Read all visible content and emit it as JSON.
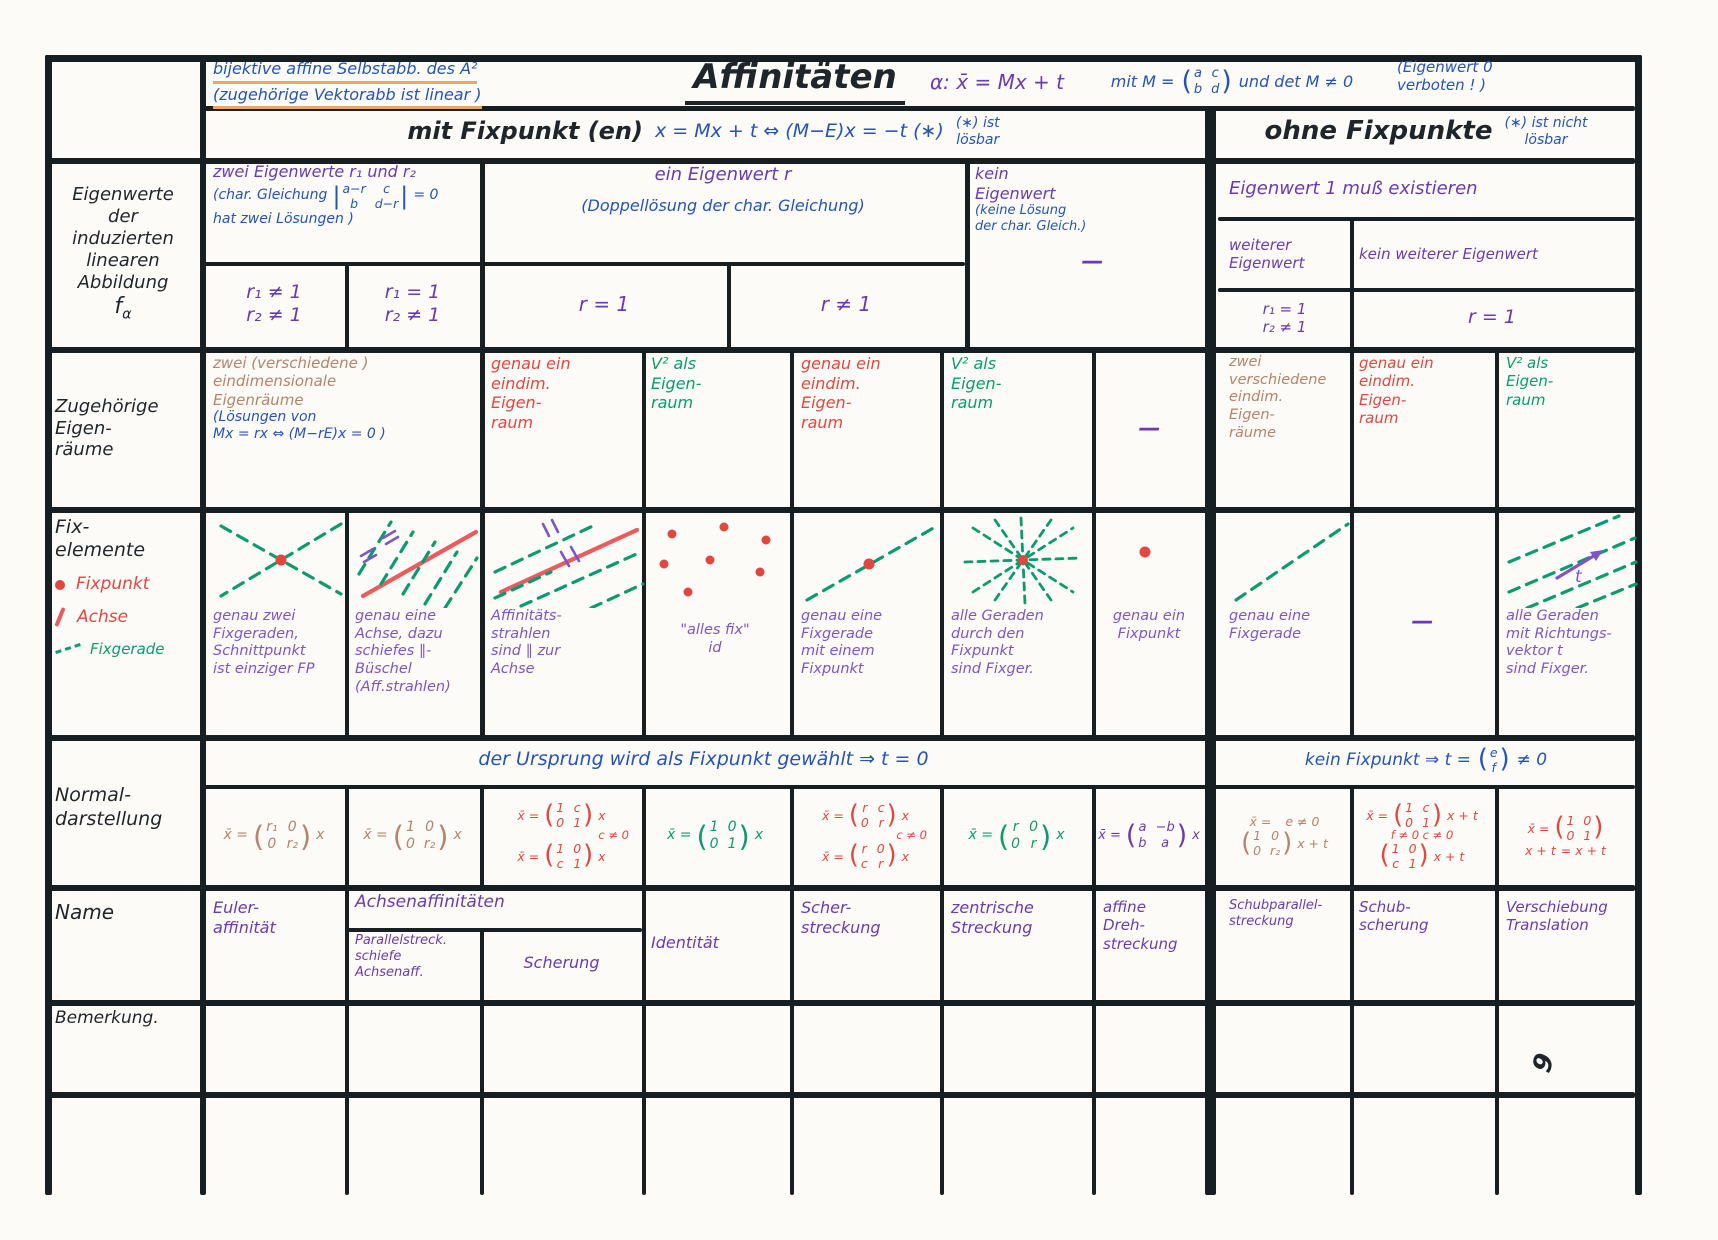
{
  "ink": {
    "black": "#1f262b",
    "blue": "#2353bb",
    "violet": "#6a3ab4",
    "purple": "#7d55c8",
    "red": "#e2473f",
    "green": "#0a9b6f",
    "brown": "#b5846b",
    "orange_underline": "#e9a861"
  },
  "page_number": "9",
  "title_block": {
    "note1": "bijektive affine Selbstabb. des A²",
    "note2": "(zugehörige Vektorabb ist linear )",
    "title": "Affinitäten",
    "alpha": "α:  x̄ = Mx + t",
    "mit_m_pre": "mit  M =",
    "m": [
      [
        "a",
        "c"
      ],
      [
        "b",
        "d"
      ]
    ],
    "mit_m_post": "und  det M ≠ 0",
    "eigen_note": "(Eigenwert 0\nverboten ! )"
  },
  "headers": {
    "mit_label": "mit Fixpunkt (en)",
    "mit_formula": "x = Mx + t ⇔ (M−E)x = −t (∗)",
    "mit_note": "(∗) ist\nlösbar",
    "ohne_label": "ohne Fixpunkte",
    "ohne_note": "(∗) ist nicht\nlösbar"
  },
  "eigenwerte": {
    "label": "Eigenwerte\nder\ninduzierten\nlinearen\nAbbildung",
    "symbol_base": "f",
    "symbol_sub": "α",
    "two_head": "zwei Eigenwerte r₁ und r₂",
    "two_sub1": "(char. Gleichung",
    "two_det": [
      [
        "a−r",
        "c"
      ],
      [
        "b",
        "d−r"
      ]
    ],
    "two_sub2": "= 0",
    "two_sub3": "hat zwei Lösungen )",
    "case_a": "r₁ ≠ 1\nr₂ ≠ 1",
    "case_b": "r₁ = 1\nr₂ ≠ 1",
    "one_head": "ein Eigenwert r",
    "one_sub": "(Doppellösung der char. Gleichung)",
    "case_c": "r = 1",
    "case_d": "r ≠ 1",
    "none_head": "kein\nEigenwert",
    "none_sub": "(keine Lösung\nder char. Gleich.)",
    "none_dash": "—",
    "ohne_head": "Eigenwert 1 muß existieren",
    "ohne_sub1": "weiterer\nEigenwert",
    "ohne_sub2": "kein weiterer Eigenwert",
    "ohne_case1": "r₁ = 1\nr₂ ≠ 1",
    "ohne_case2": "r = 1"
  },
  "eigenraeume": {
    "label": "Zugehörige\nEigen-\nräume",
    "c1_main": "zwei (verschiedene )\neindimensionale\nEigenräume",
    "c1_sub": "(Lösungen von",
    "c1_formula": "Mx = rx ⇔ (M−rE)x = 0 )",
    "c2": "genau ein\neindim.\nEigen-\nraum",
    "c3": "V² als\nEigen-\nraum",
    "c4": "genau ein\neindim.\nEigen-\nraum",
    "c5": "V² als\nEigen-\nraum",
    "c6": "—",
    "c7": "zwei\nverschiedene\neindim.\nEigen-\nräume",
    "c8": "genau ein\neindim.\nEigen-\nraum",
    "c9": "V² als\nEigen-\nraum"
  },
  "fixelemente": {
    "label": "Fix-\nelemente",
    "legend_fixpunkt": "Fixpunkt",
    "legend_achse": "Achse",
    "legend_fixgerade": "Fixgerade",
    "c1": "genau zwei\nFixgeraden,\nSchnittpunkt\nist einziger FP",
    "c2": "genau eine\nAchse, dazu\nschiefes ∥-\nBüschel\n(Aff.strahlen)",
    "c3": "Affinitäts-\nstrahlen\nsind ∥ zur\nAchse",
    "c4": "\"alles fix\"\nid",
    "c5": "genau eine\nFixgerade\nmit einem\nFixpunkt",
    "c6": "alle Geraden\ndurch den\nFixpunkt\nsind Fixger.",
    "c7": "genau ein\nFixpunkt",
    "c8": "genau eine\nFixgerade",
    "c9": "—",
    "c10": "alle Geraden\nmit Richtungs-\nvektor t\nsind Fixger.",
    "c10_arrow_label": "t"
  },
  "normalform": {
    "label": "Normal-\ndarstellung",
    "mit_band": "der Ursprung wird als Fixpunkt gewählt  ⇒  t = 0",
    "ohne_band_pre": "kein Fixpunkt ⇒ t =",
    "ohne_band_vec": [
      [
        "e"
      ],
      [
        "f"
      ]
    ],
    "ohne_band_post": "≠ 0",
    "x_eq": "x̄ =",
    "m1": [
      [
        "r₁",
        "0"
      ],
      [
        "0",
        "r₂"
      ]
    ],
    "m1_post": "x",
    "m2": [
      [
        "1",
        "0"
      ],
      [
        "0",
        "r₂"
      ]
    ],
    "m2_post": "x",
    "m3a": [
      [
        "1",
        "c"
      ],
      [
        "0",
        "1"
      ]
    ],
    "m3a_post": "x",
    "m3_note": "c ≠ 0",
    "m3b": [
      [
        "1",
        "0"
      ],
      [
        "c",
        "1"
      ]
    ],
    "m3b_post": "x",
    "m4": [
      [
        "1",
        "0"
      ],
      [
        "0",
        "1"
      ]
    ],
    "m4_post": "x",
    "m5a": [
      [
        "r",
        "c"
      ],
      [
        "0",
        "r"
      ]
    ],
    "m5a_post": "x",
    "m5_note": "c ≠ 0",
    "m5b": [
      [
        "r",
        "0"
      ],
      [
        "c",
        "r"
      ]
    ],
    "m5b_post": "x",
    "m6": [
      [
        "r",
        "0"
      ],
      [
        "0",
        "r"
      ]
    ],
    "m6_post": "x",
    "m7": [
      [
        "a",
        "−b"
      ],
      [
        "b",
        "a"
      ]
    ],
    "m7_post": "x",
    "m8_note": "e ≠ 0",
    "m8": [
      [
        "1",
        "0"
      ],
      [
        "0",
        "r₂"
      ]
    ],
    "m8_post": "x + t",
    "m9a": [
      [
        "1",
        "c"
      ],
      [
        "0",
        "1"
      ]
    ],
    "m9a_post": "x + t",
    "m9_note": "f ≠ 0   c ≠ 0",
    "m9b": [
      [
        "1",
        "0"
      ],
      [
        "c",
        "1"
      ]
    ],
    "m9b_post": "x + t",
    "m10": [
      [
        "1",
        "0"
      ],
      [
        "0",
        "1"
      ]
    ],
    "m10_post": "x + t",
    "m10_eq": "= x + t"
  },
  "namen": {
    "label": "Name",
    "n1": "Euler-\naffinität",
    "achsen_head": "Achsenaffinitäten",
    "n2a": "Parallelstreck.\nschiefe\nAchsenaff.",
    "n2b": "Scherung",
    "n3": "Identität",
    "n4": "Scher-\nstreckung",
    "n5": "zentrische\nStreckung",
    "n6": "affine\nDreh-\nstreckung",
    "n7": "Schubparallel-\nstreckung",
    "n8": "Schub-\nscherung",
    "n9": "Verschiebung\nTranslation"
  },
  "bemerkung": {
    "label": "Bemerkung."
  }
}
